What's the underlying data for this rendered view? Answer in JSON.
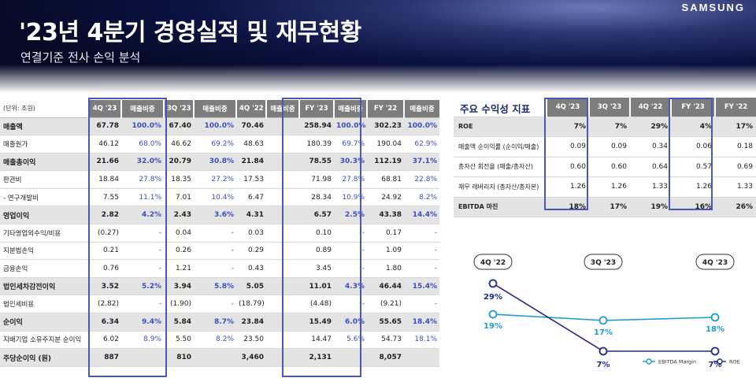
{
  "header": {
    "title": "'23년 4분기 경영실적 및 재무현황",
    "subtitle": "연결기준 전사 손익 분석",
    "logo": "SAMSUNG"
  },
  "income_table": {
    "unit": "(단위: 조원)",
    "columns": [
      "4Q '23",
      "매출비중",
      "3Q '23",
      "매출비중",
      "4Q '22",
      "매출비중",
      "FY '23",
      "매출비중",
      "FY '22",
      "매출비중"
    ],
    "rows": [
      {
        "label": "매출액",
        "major": true,
        "cells": [
          "67.78",
          "100.0%",
          "67.40",
          "100.0%",
          "70.46",
          "",
          "258.94",
          "100.0%",
          "302.23",
          "100.0%"
        ]
      },
      {
        "label": "매출원가",
        "major": false,
        "cells": [
          "46.12",
          "68.0%",
          "46.62",
          "69.2%",
          "48.63",
          "",
          "180.39",
          "69.7%",
          "190.04",
          "62.9%"
        ]
      },
      {
        "label": "매출총이익",
        "major": true,
        "cells": [
          "21.66",
          "32.0%",
          "20.79",
          "30.8%",
          "21.84",
          "",
          "78.55",
          "30.3%",
          "112.19",
          "37.1%"
        ]
      },
      {
        "label": "판관비",
        "major": false,
        "cells": [
          "18.84",
          "27.8%",
          "18.35",
          "27.2%",
          "17.53",
          "",
          "71.98",
          "27.8%",
          "68.81",
          "22.8%"
        ]
      },
      {
        "label": "- 연구개발비",
        "major": false,
        "cells": [
          "7.55",
          "11.1%",
          "7.01",
          "10.4%",
          "6.47",
          "",
          "28.34",
          "10.9%",
          "24.92",
          "8.2%"
        ]
      },
      {
        "label": "영업이익",
        "major": true,
        "cells": [
          "2.82",
          "4.2%",
          "2.43",
          "3.6%",
          "4.31",
          "",
          "6.57",
          "2.5%",
          "43.38",
          "14.4%"
        ]
      },
      {
        "label": "기타영업외수익/비용",
        "major": false,
        "cells": [
          "(0.27)",
          "-",
          "0.04",
          "-",
          "0.03",
          "",
          "0.10",
          "-",
          "0.17",
          "-"
        ]
      },
      {
        "label": "지분법손익",
        "major": false,
        "cells": [
          "0.21",
          "-",
          "0.26",
          "-",
          "0.29",
          "",
          "0.89",
          "-",
          "1.09",
          "-"
        ]
      },
      {
        "label": "금융손익",
        "major": false,
        "cells": [
          "0.76",
          "-",
          "1.21",
          "-",
          "0.43",
          "",
          "3.45",
          "-",
          "1.80",
          "-"
        ]
      },
      {
        "label": "법인세차감전이익",
        "major": true,
        "cells": [
          "3.52",
          "5.2%",
          "3.94",
          "5.8%",
          "5.05",
          "",
          "11.01",
          "4.3%",
          "46.44",
          "15.4%"
        ]
      },
      {
        "label": "법인세비용",
        "major": false,
        "cells": [
          "(2.82)",
          "-",
          "(1.90)",
          "-",
          "(18.79)",
          "",
          "(4.48)",
          "-",
          "(9.21)",
          "-"
        ]
      },
      {
        "label": "순이익",
        "major": true,
        "cells": [
          "6.34",
          "9.4%",
          "5.84",
          "8.7%",
          "23.84",
          "",
          "15.49",
          "6.0%",
          "55.65",
          "18.4%"
        ]
      },
      {
        "label": "지배기업 소유주지분 순이익",
        "major": false,
        "cells": [
          "6.02",
          "8.9%",
          "5.50",
          "8.2%",
          "23.50",
          "",
          "14.47",
          "5.6%",
          "54.73",
          "18.1%"
        ]
      },
      {
        "label": "주당순이익 (원)",
        "major": true,
        "cells": [
          "887",
          "",
          "810",
          "",
          "3,460",
          "",
          "2,131",
          "",
          "8,057",
          ""
        ]
      }
    ]
  },
  "ratio_table": {
    "title": "주요 수익성 지표",
    "columns": [
      "4Q '23",
      "3Q '23",
      "4Q '22",
      "FY '23",
      "FY '22"
    ],
    "rows": [
      {
        "label": "ROE",
        "style": "major",
        "cells": [
          "7%",
          "7%",
          "29%",
          "4%",
          "17%"
        ]
      },
      {
        "label": "매출액 순이익률 (순이익/매출)",
        "style": "normal",
        "cells": [
          "0.09",
          "0.09",
          "0.34",
          "0.06",
          "0.18"
        ]
      },
      {
        "label": "총자산 회전율 (매출/총자산)",
        "style": "normal",
        "cells": [
          "0.60",
          "0.60",
          "0.64",
          "0.57",
          "0.69"
        ]
      },
      {
        "label": "재무 레버리지 (총자산/총자본)",
        "style": "normal",
        "cells": [
          "1.26",
          "1.26",
          "1.33",
          "1.26",
          "1.33"
        ]
      },
      {
        "label": "EBITDA 마진",
        "style": "ebitda",
        "cells": [
          "18%",
          "17%",
          "19%",
          "16%",
          "26%"
        ]
      }
    ]
  },
  "chart_data": {
    "type": "line",
    "categories": [
      "4Q '22",
      "3Q '23",
      "4Q '23"
    ],
    "series": [
      {
        "name": "EBITDA Margin",
        "values": [
          19,
          17,
          18
        ],
        "labels": [
          "19%",
          "17%",
          "18%"
        ],
        "color": "#1a9ad6"
      },
      {
        "name": "ROE",
        "values": [
          29,
          7,
          7
        ],
        "labels": [
          "29%",
          "7%",
          "7%"
        ],
        "color": "#1e2a8c"
      }
    ],
    "legend": "bottom-right"
  }
}
